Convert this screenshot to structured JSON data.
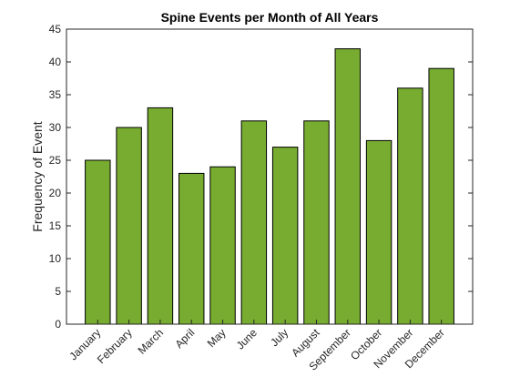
{
  "chart_data": {
    "type": "bar",
    "title": "Spine Events per Month of All Years",
    "xlabel": "",
    "ylabel": "Frequency of Event",
    "categories": [
      "January",
      "February",
      "March",
      "April",
      "May",
      "June",
      "July",
      "August",
      "September",
      "October",
      "November",
      "December"
    ],
    "values": [
      25,
      30,
      33,
      23,
      24,
      31,
      27,
      31,
      42,
      28,
      36,
      39
    ],
    "ylim": [
      0,
      45
    ],
    "yticks": [
      0,
      5,
      10,
      15,
      20,
      25,
      30,
      35,
      40,
      45
    ],
    "grid": false,
    "legend": "none",
    "colors": {
      "bar_fill": "#77ac30",
      "bar_edge": "#000000",
      "axis": "#262626",
      "text": "#262626"
    }
  }
}
